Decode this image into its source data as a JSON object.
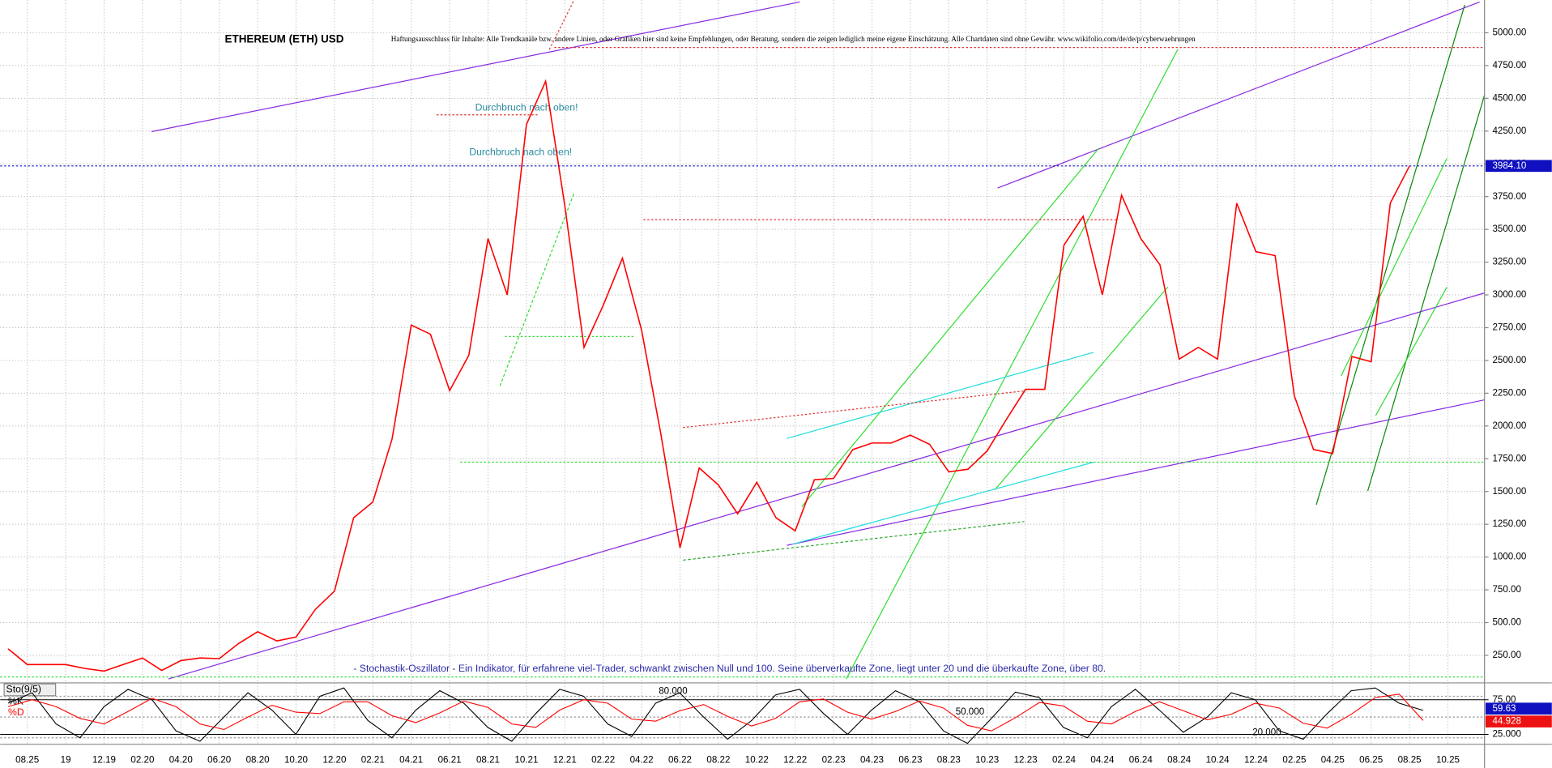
{
  "chart_data": [
    {
      "type": "line",
      "title": "ETHEREUM (ETH) USD",
      "disclaimer": "Haftungsausschluss für Inhalte: Alle Trendkanäle bzw. andere Linien, oder Grafiken hier sind keine Empfehlungen, oder Beratung, sondern die zeigen lediglich meine eigene Einschätzung. Alle Chartdaten sind ohne Gewähr.  www.wikifolio.com/de/de/p/cyberwaehrungen",
      "annotations": [
        "Durchbruch nach oben!",
        "Durchbruch nach oben!",
        "- Stochastik-Oszillator - Ein Indikator, für erfahrene viel-Trader, schwankt zwischen Null und 100. Seine überverkaufte Zone, liegt unter 20 und die überkaufte Zone, über 80."
      ],
      "categories": [
        null,
        "08.25",
        null,
        "19",
        null,
        "12.19",
        null,
        "02.20",
        null,
        "04.20",
        null,
        "06.20",
        null,
        "08.20",
        null,
        "10.20",
        null,
        "12.20",
        null,
        "02.21",
        null,
        "04.21",
        null,
        "06.21",
        null,
        "08.21",
        null,
        "10.21",
        null,
        "12.21",
        null,
        "02.22",
        null,
        "04.22",
        null,
        "06.22",
        null,
        "08.22",
        null,
        "10.22",
        null,
        "12.22",
        null,
        "02.23",
        null,
        "04.23",
        null,
        "06.23",
        null,
        "08.23",
        null,
        "10.23",
        null,
        "12.23",
        null,
        "02.24",
        null,
        "04.24",
        null,
        "06.24",
        null,
        "08.24",
        null,
        "10.24",
        null,
        "12.24",
        null,
        "02.25",
        null,
        "04.25",
        null,
        "06.25",
        null,
        "08.25",
        null,
        "10.25"
      ],
      "values": [
        300,
        180,
        180,
        180,
        150,
        130,
        180,
        230,
        135,
        210,
        230,
        225,
        340,
        430,
        360,
        390,
        600,
        740,
        1300,
        1420,
        1900,
        2770,
        2700,
        2270,
        2540,
        3430,
        3000,
        4300,
        4630,
        3680,
        2600,
        2920,
        3280,
        2730,
        1940,
        1070,
        1680,
        1550,
        1330,
        1570,
        1300,
        1200,
        1590,
        1600,
        1820,
        1870,
        1870,
        1930,
        1860,
        1650,
        1670,
        1810,
        2050,
        2280,
        2280,
        3380,
        3600,
        3000,
        3760,
        3430,
        3230,
        2510,
        2600,
        2510,
        3700,
        3330,
        3300,
        2230,
        1820,
        1790,
        2530,
        2490,
        3700,
        3984.1,
        null,
        null
      ],
      "color": "#ff0000",
      "last_price": {
        "value": 3984.1,
        "label": "3984.10"
      },
      "ylim": [
        40,
        5250
      ],
      "yticks": [
        {
          "value": 250,
          "label": "250.00"
        },
        {
          "value": 500,
          "label": "500.00"
        },
        {
          "value": 750,
          "label": "750.00"
        },
        {
          "value": 1000,
          "label": "1000.00"
        },
        {
          "value": 1250,
          "label": "1250.00"
        },
        {
          "value": 1500,
          "label": "1500.00"
        },
        {
          "value": 1750,
          "label": "1750.00"
        },
        {
          "value": 2000,
          "label": "2000.00"
        },
        {
          "value": 2250,
          "label": "2250.00"
        },
        {
          "value": 2500,
          "label": "2500.00"
        },
        {
          "value": 2750,
          "label": "2750.00"
        },
        {
          "value": 3000,
          "label": "3000.00"
        },
        {
          "value": 3250,
          "label": "3250.00"
        },
        {
          "value": 3500,
          "label": "3500.00"
        },
        {
          "value": 3750,
          "label": "3750.00"
        },
        {
          "value": 4000,
          "label": "4000.00"
        },
        {
          "value": 4250,
          "label": "4250.00"
        },
        {
          "value": 4500,
          "label": "4500.00"
        },
        {
          "value": 4750,
          "label": "4750.00"
        },
        {
          "value": 5000,
          "label": "5000.00"
        }
      ],
      "grid": true
    },
    {
      "type": "line",
      "label": "Sto(9/5)",
      "series": [
        {
          "name": "%K",
          "color": "#000000",
          "last_label": "59.63",
          "values": [
            70,
            85,
            40,
            20,
            65,
            90,
            75,
            30,
            15,
            50,
            85,
            60,
            25,
            80,
            92,
            45,
            20,
            60,
            88,
            70,
            35,
            15,
            55,
            90,
            80,
            40,
            22,
            70,
            85,
            50,
            18,
            45,
            82,
            90,
            55,
            25,
            60,
            88,
            72,
            30,
            12,
            48,
            86,
            78,
            35,
            20,
            65,
            90,
            60,
            28,
            50,
            85,
            75,
            30,
            18,
            55,
            88,
            92,
            70,
            59.63
          ]
        },
        {
          "name": "%D",
          "color": "#ff0000",
          "last_label": "44.928",
          "values": [
            65,
            75,
            65,
            48,
            40,
            58,
            77,
            65,
            40,
            32,
            50,
            67,
            57,
            55,
            72,
            72,
            52,
            42,
            56,
            73,
            64,
            40,
            35,
            60,
            75,
            70,
            47,
            44,
            59,
            68,
            51,
            37,
            48,
            72,
            76,
            57,
            47,
            58,
            73,
            63,
            38,
            30,
            49,
            71,
            66,
            44,
            40,
            58,
            72,
            59,
            46,
            54,
            70,
            63,
            41,
            34,
            54,
            78,
            83,
            44.928
          ]
        }
      ],
      "levels": [
        {
          "value": 80,
          "label": "80.000"
        },
        {
          "value": 50,
          "label": "50.000"
        },
        {
          "value": 20,
          "label": "20.000"
        }
      ],
      "ylim": [
        0,
        100
      ],
      "yticks": [
        {
          "value": 75,
          "label": "75.00"
        },
        {
          "value": 25,
          "label": "25.000"
        }
      ]
    }
  ]
}
